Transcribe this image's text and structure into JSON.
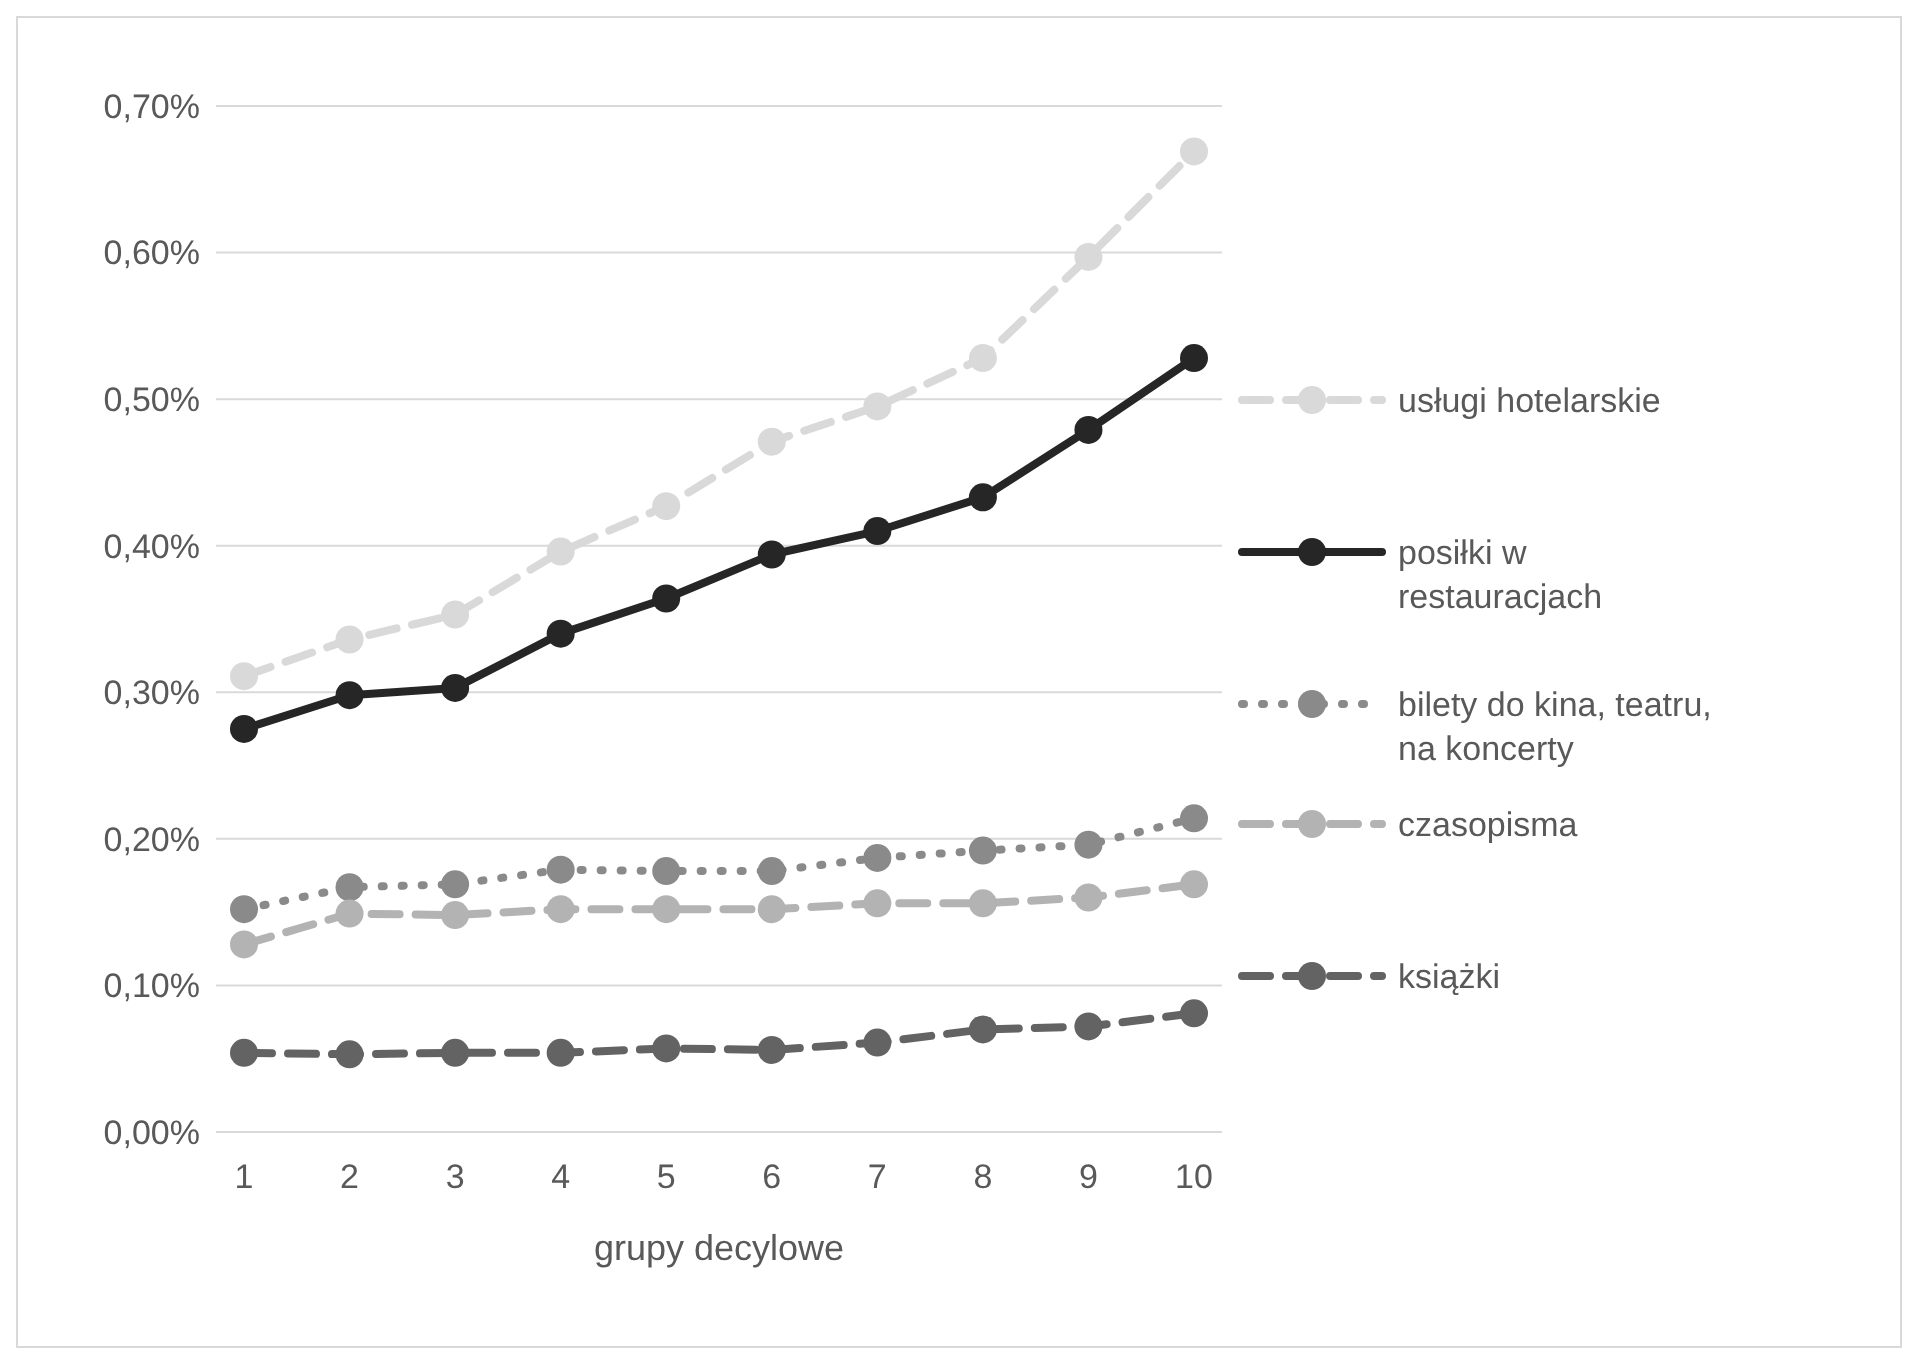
{
  "chart_data": {
    "type": "line",
    "xlabel": "grupy decylowe",
    "categories": [
      "1",
      "2",
      "3",
      "4",
      "5",
      "6",
      "7",
      "8",
      "9",
      "10"
    ],
    "ylim": [
      0,
      0.7
    ],
    "yticks": [
      {
        "value": 0,
        "label": "0,00%"
      },
      {
        "value": 0.1,
        "label": "0,10%"
      },
      {
        "value": 0.2,
        "label": "0,20%"
      },
      {
        "value": 0.3,
        "label": "0,30%"
      },
      {
        "value": 0.4,
        "label": "0,40%"
      },
      {
        "value": 0.5,
        "label": "0,50%"
      },
      {
        "value": 0.6,
        "label": "0,60%"
      },
      {
        "value": 0.7,
        "label": "0,70%"
      }
    ],
    "grid": "y",
    "legend": "right",
    "marker": "circle",
    "series": [
      {
        "name": "usługi hotelarskie",
        "color": "#d9d9d9",
        "line_style": "dashed",
        "values": [
          0.311,
          0.336,
          0.353,
          0.396,
          0.427,
          0.471,
          0.495,
          0.528,
          0.597,
          0.669
        ]
      },
      {
        "name": "posiłki w restauracjach",
        "color": "#262626",
        "line_style": "solid",
        "values": [
          0.275,
          0.298,
          0.303,
          0.34,
          0.364,
          0.394,
          0.41,
          0.433,
          0.479,
          0.528
        ]
      },
      {
        "name": "bilety do kina, teatru, na koncerty",
        "color": "#8a8a8a",
        "line_style": "dotted",
        "values": [
          0.152,
          0.167,
          0.169,
          0.179,
          0.178,
          0.178,
          0.187,
          0.192,
          0.196,
          0.214
        ]
      },
      {
        "name": "czasopisma",
        "color": "#b3b3b3",
        "line_style": "dashed",
        "values": [
          0.128,
          0.149,
          0.148,
          0.152,
          0.152,
          0.152,
          0.156,
          0.156,
          0.16,
          0.169
        ]
      },
      {
        "name": "książki",
        "color": "#636363",
        "line_style": "dashed",
        "values": [
          0.054,
          0.053,
          0.054,
          0.054,
          0.057,
          0.056,
          0.061,
          0.07,
          0.072,
          0.081
        ]
      }
    ]
  }
}
